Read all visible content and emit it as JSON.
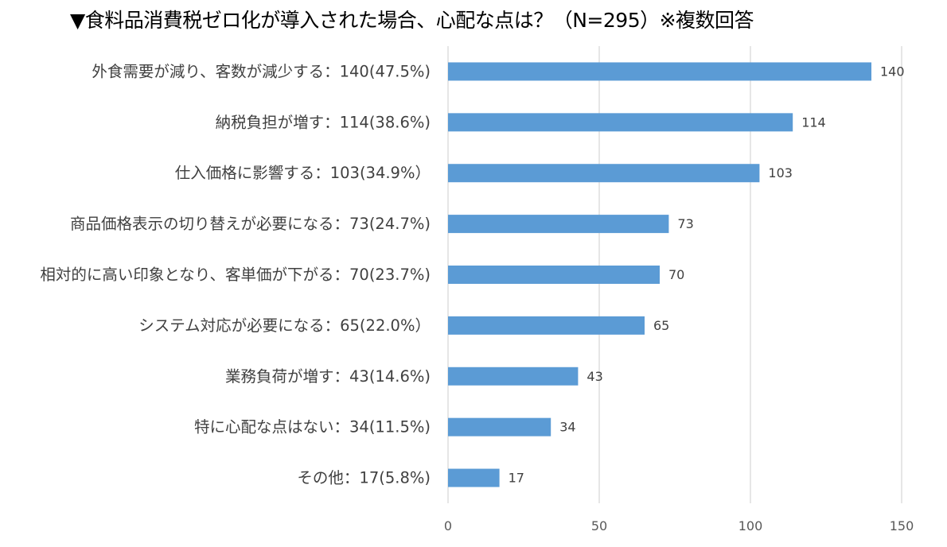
{
  "chart_data": {
    "type": "bar",
    "orientation": "horizontal",
    "title": "▼食料品消費税ゼロ化が導入された場合、心配な点は？（N=295）※複数回答",
    "categories": [
      "外食需要が減り、客数が減少する：140(47.5%)",
      "納税負担が増す：114(38.6%)",
      "仕入価格に影響する：103(34.9%）",
      "商品価格表示の切り替えが必要になる：73(24.7%)",
      "相対的に高い印象となり、客単価が下がる：70(23.7%)",
      "システム対応が必要になる：65(22.0%）",
      "業務負荷が増す：43(14.6%)",
      "特に心配な点はない：34(11.5%)",
      "その他：17(5.8%)"
    ],
    "values": [
      140,
      114,
      103,
      73,
      70,
      65,
      43,
      34,
      17
    ],
    "value_labels": [
      "140",
      "114",
      "103",
      "73",
      "70",
      "65",
      "43",
      "34",
      "17"
    ],
    "xlim": [
      0,
      150
    ],
    "xticks": [
      0,
      50,
      100,
      150
    ],
    "xtick_labels": [
      "0",
      "50",
      "100",
      "150"
    ],
    "grid": true,
    "bar_color": "#5B9BD5",
    "grid_color": "#D9D9D9"
  }
}
